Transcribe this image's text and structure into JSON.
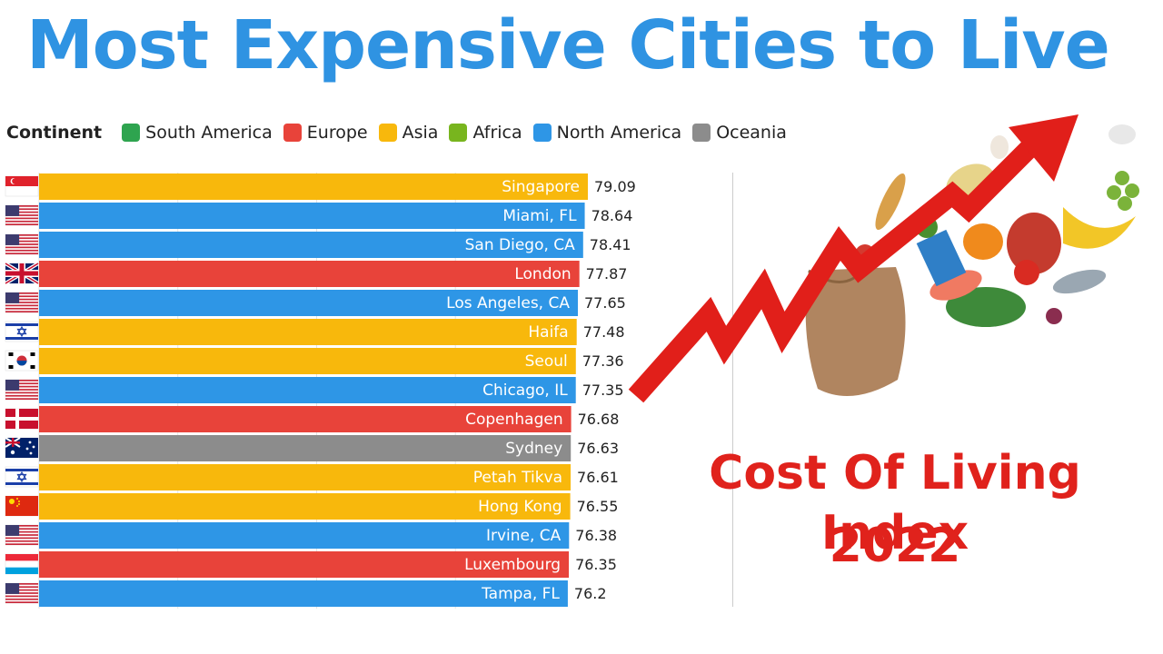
{
  "page_title": "Most Expensive Cities to Live",
  "legend": {
    "title": "Continent",
    "items": [
      {
        "label": "South America",
        "color": "#2ea44f"
      },
      {
        "label": "Europe",
        "color": "#e8433a"
      },
      {
        "label": "Asia",
        "color": "#f8b80c"
      },
      {
        "label": "Africa",
        "color": "#78b51e"
      },
      {
        "label": "North America",
        "color": "#2e96e6"
      },
      {
        "label": "Oceania",
        "color": "#8c8c8c"
      }
    ]
  },
  "side_panel": {
    "headline": "Cost Of Living Index",
    "year": "2022"
  },
  "chart_data": {
    "type": "bar",
    "orientation": "horizontal",
    "title": "Most Expensive Cities to Live",
    "xlim": [
      0,
      80
    ],
    "grid": true,
    "legend_placement": "top-left",
    "categories": [
      "Singapore",
      "Miami, FL",
      "San Diego, CA",
      "London",
      "Los Angeles, CA",
      "Haifa",
      "Seoul",
      "Chicago, IL",
      "Copenhagen",
      "Sydney",
      "Petah Tikva",
      "Hong Kong",
      "Irvine, CA",
      "Luxembourg",
      "Tampa, FL"
    ],
    "values": [
      79.09,
      78.64,
      78.41,
      77.87,
      77.65,
      77.48,
      77.36,
      77.35,
      76.68,
      76.63,
      76.61,
      76.55,
      76.38,
      76.35,
      76.2
    ],
    "value_labels": [
      "79.09",
      "78.64",
      "78.41",
      "77.87",
      "77.65",
      "77.48",
      "77.36",
      "77.35",
      "76.68",
      "76.63",
      "76.61",
      "76.55",
      "76.38",
      "76.35",
      "76.2"
    ],
    "continents": [
      "Asia",
      "North America",
      "North America",
      "Europe",
      "North America",
      "Asia",
      "Asia",
      "North America",
      "Europe",
      "Oceania",
      "Asia",
      "Asia",
      "North America",
      "Europe",
      "North America"
    ],
    "flags": [
      "singapore-flag",
      "usa-flag",
      "usa-flag",
      "uk-flag",
      "usa-flag",
      "israel-flag",
      "south-korea-flag",
      "usa-flag",
      "denmark-flag",
      "australia-flag",
      "israel-flag",
      "china-flag",
      "usa-flag",
      "luxembourg-flag",
      "usa-flag"
    ]
  }
}
